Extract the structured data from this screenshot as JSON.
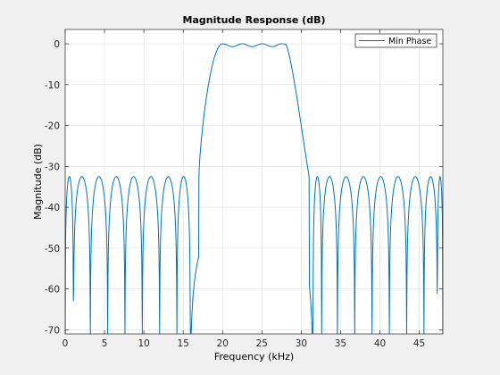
{
  "chart_data": {
    "type": "line",
    "title": "Magnitude Response (dB)",
    "xlabel": "Frequency (kHz)",
    "ylabel": "Magnitude (dB)",
    "xlim": [
      0,
      48
    ],
    "ylim": [
      -71,
      3.5
    ],
    "xticks": [
      0,
      5,
      10,
      15,
      20,
      25,
      30,
      35,
      40,
      45
    ],
    "yticks": [
      0,
      -10,
      -20,
      -30,
      -40,
      -50,
      -60,
      -70
    ],
    "grid": true,
    "legend_location": "top-right",
    "series": [
      {
        "name": "Min Phase",
        "color": "#0072bd",
        "passband_kHz": [
          20,
          28
        ],
        "passband_level_dB": 0,
        "stopband_peak_dB": -32.5,
        "transition_bands_kHz": [
          [
            17,
            20
          ],
          [
            28,
            31
          ]
        ],
        "stopband_null_frequencies_kHz": [
          1.05,
          3.2,
          5.4,
          7.6,
          9.8,
          12.0,
          14.2,
          15.9,
          31.5,
          32.6,
          34.6,
          36.8,
          39.0,
          41.2,
          43.4,
          45.6,
          47.3
        ]
      }
    ]
  }
}
